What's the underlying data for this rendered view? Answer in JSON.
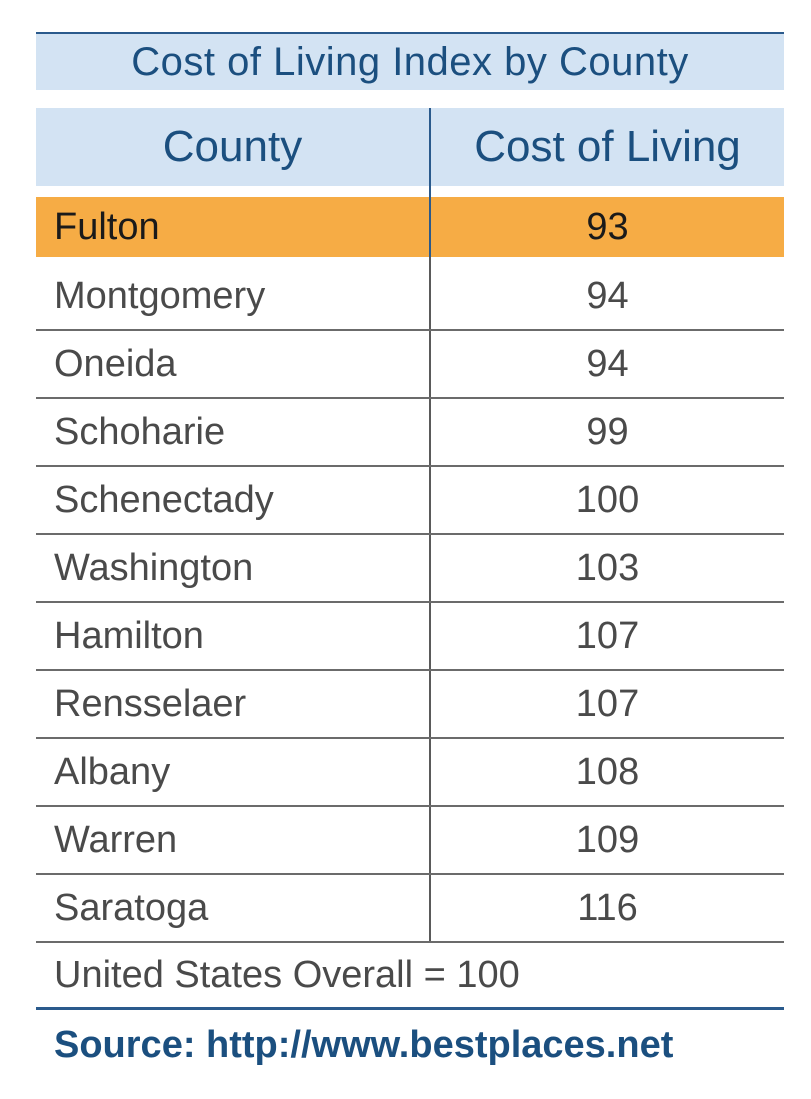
{
  "chart_data": {
    "type": "table",
    "title": "Cost of Living Index by County",
    "columns": [
      "County",
      "Cost of Living"
    ],
    "rows": [
      {
        "county": "Fulton",
        "value": "93"
      },
      {
        "county": "Montgomery",
        "value": "94"
      },
      {
        "county": "Oneida",
        "value": "94"
      },
      {
        "county": "Schoharie",
        "value": "99"
      },
      {
        "county": "Schenectady",
        "value": "100"
      },
      {
        "county": "Washington",
        "value": "103"
      },
      {
        "county": "Hamilton",
        "value": "107"
      },
      {
        "county": "Rensselaer",
        "value": "107"
      },
      {
        "county": "Albany",
        "value": "108"
      },
      {
        "county": "Warren",
        "value": "109"
      },
      {
        "county": "Saratoga",
        "value": "116"
      }
    ],
    "highlighted_row": "Fulton",
    "note": "United States Overall = 100",
    "source": "Source: http://www.bestplaces.net"
  },
  "colors": {
    "header_background": "#d3e3f3",
    "header_text": "#1b4f7f",
    "highlight": "#f6ac45"
  }
}
